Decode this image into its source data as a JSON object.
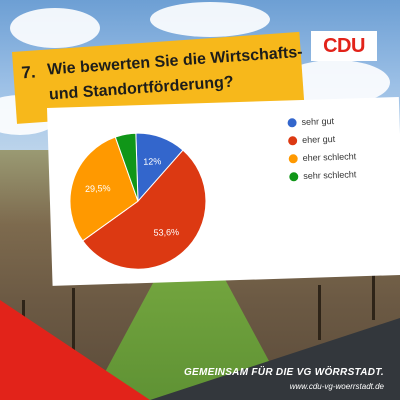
{
  "brand": {
    "logo_text": "CDU",
    "accent": "#e2231a",
    "banner_color": "#f7b81b"
  },
  "question": {
    "number": "7.",
    "line1": "Wie bewerten Sie die Wirtschafts-",
    "line2": "und Standortförderung?"
  },
  "chart_data": {
    "type": "pie",
    "title": "",
    "slices": [
      {
        "label": "sehr gut",
        "value": 12,
        "value_label": "12%",
        "color": "#3366cc"
      },
      {
        "label": "eher gut",
        "value": 53.6,
        "value_label": "53,6%",
        "color": "#dc3912"
      },
      {
        "label": "eher schlecht",
        "value": 29.5,
        "value_label": "29,5%",
        "color": "#ff9900"
      },
      {
        "label": "sehr schlecht",
        "value": 4.9,
        "value_label": "",
        "color": "#109618"
      }
    ],
    "start_angle_deg": 90,
    "direction": "clockwise",
    "legend_position": "right"
  },
  "footer": {
    "slogan": "GEMEINSAM FÜR DIE VG WÖRRSTADT.",
    "url": "www.cdu-vg-woerrstadt.de"
  }
}
